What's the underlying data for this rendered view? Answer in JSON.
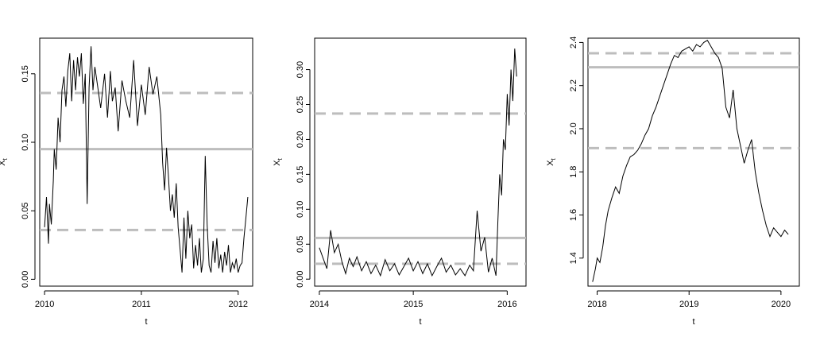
{
  "chart_data": [
    {
      "type": "line",
      "xlabel": "t",
      "ylabel": "X",
      "ylabel_sub": "t",
      "xlim": [
        2009.95,
        2012.15
      ],
      "ylim": [
        -0.005,
        0.176
      ],
      "x_ticks": [
        2010,
        2011,
        2012
      ],
      "x_tick_labels": [
        "2010",
        "2011",
        "2012"
      ],
      "y_ticks": [
        0.0,
        0.05,
        0.1,
        0.15
      ],
      "y_tick_labels": [
        "0.00",
        "0.05",
        "0.10",
        "0.15"
      ],
      "grid": false,
      "hlines": [
        {
          "y": 0.095,
          "style": "solid",
          "color": "#bdbdbd"
        },
        {
          "y": 0.136,
          "style": "dashed",
          "color": "#bdbdbd"
        },
        {
          "y": 0.036,
          "style": "dashed",
          "color": "#bdbdbd"
        }
      ],
      "series": [
        {
          "color": "#000000",
          "x": [
            2010.0,
            2010.02,
            2010.04,
            2010.05,
            2010.07,
            2010.09,
            2010.1,
            2010.12,
            2010.14,
            2010.16,
            2010.18,
            2010.2,
            2010.22,
            2010.24,
            2010.26,
            2010.28,
            2010.3,
            2010.32,
            2010.34,
            2010.36,
            2010.38,
            2010.4,
            2010.42,
            2010.44,
            2010.46,
            2010.48,
            2010.5,
            2010.52,
            2010.55,
            2010.58,
            2010.62,
            2010.65,
            2010.68,
            2010.7,
            2010.73,
            2010.76,
            2010.8,
            2010.84,
            2010.88,
            2010.92,
            2010.96,
            2011.0,
            2011.04,
            2011.08,
            2011.12,
            2011.16,
            2011.2,
            2011.22,
            2011.24,
            2011.26,
            2011.28,
            2011.3,
            2011.32,
            2011.34,
            2011.36,
            2011.38,
            2011.4,
            2011.42,
            2011.44,
            2011.46,
            2011.48,
            2011.5,
            2011.52,
            2011.54,
            2011.56,
            2011.58,
            2011.6,
            2011.62,
            2011.64,
            2011.66,
            2011.68,
            2011.7,
            2011.72,
            2011.74,
            2011.76,
            2011.78,
            2011.8,
            2011.82,
            2011.84,
            2011.86,
            2011.88,
            2011.9,
            2011.92,
            2011.94,
            2011.96,
            2011.98,
            2012.0,
            2012.02,
            2012.04,
            2012.06,
            2012.08,
            2012.1
          ],
          "y": [
            0.038,
            0.06,
            0.026,
            0.055,
            0.04,
            0.072,
            0.095,
            0.08,
            0.118,
            0.1,
            0.138,
            0.148,
            0.126,
            0.152,
            0.165,
            0.13,
            0.16,
            0.138,
            0.162,
            0.148,
            0.165,
            0.128,
            0.15,
            0.055,
            0.14,
            0.17,
            0.138,
            0.155,
            0.14,
            0.125,
            0.15,
            0.118,
            0.152,
            0.13,
            0.14,
            0.108,
            0.145,
            0.13,
            0.118,
            0.16,
            0.112,
            0.142,
            0.12,
            0.155,
            0.135,
            0.148,
            0.12,
            0.085,
            0.065,
            0.096,
            0.075,
            0.05,
            0.062,
            0.045,
            0.07,
            0.038,
            0.022,
            0.005,
            0.045,
            0.015,
            0.05,
            0.03,
            0.04,
            0.008,
            0.025,
            0.01,
            0.03,
            0.005,
            0.015,
            0.09,
            0.04,
            0.01,
            0.005,
            0.028,
            0.012,
            0.03,
            0.008,
            0.018,
            0.005,
            0.02,
            0.01,
            0.025,
            0.005,
            0.012,
            0.008,
            0.015,
            0.005,
            0.01,
            0.012,
            0.03,
            0.045,
            0.06
          ]
        }
      ]
    },
    {
      "type": "line",
      "xlabel": "t",
      "ylabel": "X",
      "ylabel_sub": "t",
      "xlim": [
        2013.95,
        2016.2
      ],
      "ylim": [
        -0.01,
        0.345
      ],
      "x_ticks": [
        2014,
        2015,
        2016
      ],
      "x_tick_labels": [
        "2014",
        "2015",
        "2016"
      ],
      "y_ticks": [
        0.0,
        0.05,
        0.1,
        0.15,
        0.2,
        0.25,
        0.3
      ],
      "y_tick_labels": [
        "0.00",
        "0.05",
        "0.10",
        "0.15",
        "0.20",
        "0.25",
        "0.30"
      ],
      "grid": false,
      "hlines": [
        {
          "y": 0.059,
          "style": "solid",
          "color": "#bdbdbd"
        },
        {
          "y": 0.237,
          "style": "dashed",
          "color": "#bdbdbd"
        },
        {
          "y": 0.022,
          "style": "dashed",
          "color": "#bdbdbd"
        }
      ],
      "series": [
        {
          "color": "#000000",
          "x": [
            2014.0,
            2014.04,
            2014.08,
            2014.12,
            2014.16,
            2014.2,
            2014.24,
            2014.28,
            2014.32,
            2014.36,
            2014.4,
            2014.45,
            2014.5,
            2014.55,
            2014.6,
            2014.65,
            2014.7,
            2014.75,
            2014.8,
            2014.85,
            2014.9,
            2014.95,
            2015.0,
            2015.05,
            2015.1,
            2015.15,
            2015.2,
            2015.25,
            2015.3,
            2015.35,
            2015.4,
            2015.45,
            2015.5,
            2015.55,
            2015.6,
            2015.64,
            2015.68,
            2015.72,
            2015.76,
            2015.8,
            2015.84,
            2015.88,
            2015.9,
            2015.92,
            2015.94,
            2015.96,
            2015.98,
            2016.0,
            2016.02,
            2016.04,
            2016.06,
            2016.08,
            2016.1
          ],
          "y": [
            0.045,
            0.03,
            0.015,
            0.07,
            0.038,
            0.05,
            0.025,
            0.008,
            0.03,
            0.018,
            0.032,
            0.012,
            0.025,
            0.008,
            0.02,
            0.005,
            0.028,
            0.012,
            0.022,
            0.006,
            0.018,
            0.03,
            0.012,
            0.025,
            0.008,
            0.022,
            0.005,
            0.018,
            0.03,
            0.01,
            0.02,
            0.006,
            0.015,
            0.005,
            0.02,
            0.012,
            0.098,
            0.04,
            0.06,
            0.01,
            0.03,
            0.005,
            0.08,
            0.15,
            0.12,
            0.2,
            0.185,
            0.265,
            0.22,
            0.3,
            0.255,
            0.33,
            0.29
          ]
        }
      ]
    },
    {
      "type": "line",
      "xlabel": "t",
      "ylabel": "X",
      "ylabel_sub": "t",
      "xlim": [
        2017.9,
        2020.2
      ],
      "ylim": [
        1.27,
        2.42
      ],
      "x_ticks": [
        2018,
        2019,
        2020
      ],
      "x_tick_labels": [
        "2018",
        "2019",
        "2020"
      ],
      "y_ticks": [
        1.4,
        1.6,
        1.8,
        2.0,
        2.2,
        2.4
      ],
      "y_tick_labels": [
        "1.4",
        "1.6",
        "1.8",
        "2.0",
        "2.2",
        "2.4"
      ],
      "grid": false,
      "hlines": [
        {
          "y": 2.285,
          "style": "solid",
          "color": "#bdbdbd"
        },
        {
          "y": 2.35,
          "style": "dashed",
          "color": "#bdbdbd"
        },
        {
          "y": 1.91,
          "style": "dashed",
          "color": "#bdbdbd"
        }
      ],
      "series": [
        {
          "color": "#000000",
          "x": [
            2017.95,
            2017.98,
            2018.0,
            2018.03,
            2018.06,
            2018.09,
            2018.12,
            2018.16,
            2018.2,
            2018.24,
            2018.28,
            2018.32,
            2018.36,
            2018.4,
            2018.44,
            2018.48,
            2018.52,
            2018.56,
            2018.6,
            2018.64,
            2018.68,
            2018.72,
            2018.76,
            2018.8,
            2018.84,
            2018.88,
            2018.92,
            2018.96,
            2019.0,
            2019.04,
            2019.08,
            2019.12,
            2019.16,
            2019.2,
            2019.24,
            2019.28,
            2019.32,
            2019.36,
            2019.4,
            2019.44,
            2019.48,
            2019.52,
            2019.56,
            2019.6,
            2019.64,
            2019.68,
            2019.72,
            2019.76,
            2019.8,
            2019.84,
            2019.88,
            2019.92,
            2019.96,
            2020.0,
            2020.04,
            2020.08
          ],
          "y": [
            1.29,
            1.35,
            1.4,
            1.38,
            1.45,
            1.55,
            1.62,
            1.68,
            1.73,
            1.7,
            1.78,
            1.83,
            1.87,
            1.88,
            1.9,
            1.93,
            1.97,
            2.0,
            2.06,
            2.1,
            2.15,
            2.2,
            2.25,
            2.3,
            2.34,
            2.33,
            2.36,
            2.37,
            2.38,
            2.36,
            2.39,
            2.38,
            2.4,
            2.41,
            2.38,
            2.35,
            2.33,
            2.28,
            2.1,
            2.05,
            2.18,
            2.0,
            1.92,
            1.84,
            1.9,
            1.95,
            1.8,
            1.7,
            1.62,
            1.55,
            1.5,
            1.54,
            1.52,
            1.5,
            1.53,
            1.51
          ]
        }
      ]
    }
  ]
}
